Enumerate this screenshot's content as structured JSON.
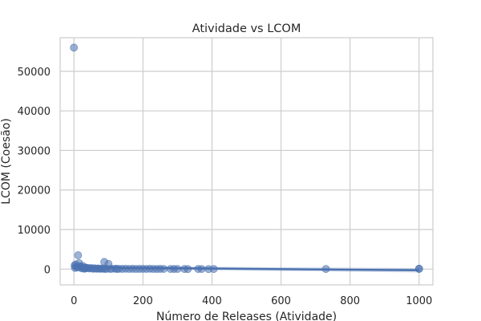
{
  "chart_data": {
    "type": "scatter",
    "title": "Atividade vs LCOM",
    "xlabel": "Número de Releases (Atividade)",
    "ylabel": "LCOM (Coesão)",
    "xlim": [
      -40,
      1040
    ],
    "ylim": [
      -4000,
      58500
    ],
    "xticks": [
      0,
      200,
      400,
      600,
      800,
      1000
    ],
    "yticks": [
      0,
      10000,
      20000,
      30000,
      40000,
      50000
    ],
    "grid": true,
    "colors": {
      "points": "#4c72b0",
      "line": "#4c72b0",
      "grid": "#cccccc",
      "frame": "#cccccc"
    },
    "series": [
      {
        "kind": "points",
        "x": [
          0,
          2,
          3,
          5,
          7,
          10,
          12,
          15,
          18,
          20,
          22,
          25,
          28,
          30,
          33,
          35,
          40,
          45,
          50,
          55,
          60,
          65,
          70,
          75,
          80,
          85,
          88,
          90,
          95,
          100,
          105,
          110,
          120,
          125,
          130,
          140,
          150,
          160,
          170,
          180,
          190,
          200,
          210,
          220,
          230,
          240,
          250,
          260,
          280,
          290,
          300,
          320,
          330,
          360,
          370,
          390,
          405,
          730,
          1000,
          1000
        ],
        "y": [
          56000,
          900,
          300,
          1200,
          600,
          400,
          3500,
          1500,
          700,
          500,
          200,
          800,
          300,
          100,
          400,
          200,
          300,
          150,
          250,
          100,
          200,
          80,
          150,
          60,
          120,
          90,
          1800,
          50,
          70,
          1300,
          40,
          80,
          100,
          30,
          60,
          50,
          90,
          40,
          70,
          30,
          50,
          60,
          40,
          80,
          30,
          20,
          50,
          40,
          30,
          20,
          30,
          20,
          10,
          20,
          15,
          10,
          20,
          20,
          50,
          100
        ]
      },
      {
        "kind": "regression",
        "x": [
          0,
          1000
        ],
        "y": [
          430,
          -300
        ]
      }
    ]
  }
}
